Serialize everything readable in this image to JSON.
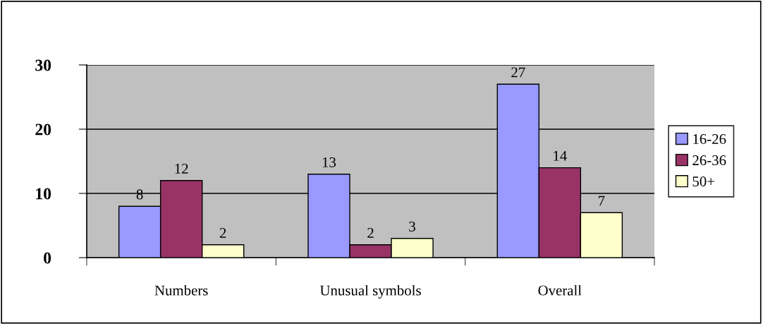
{
  "chart_data": {
    "type": "bar",
    "categories": [
      "Numbers",
      "Unusual symbols",
      "Overall"
    ],
    "series": [
      {
        "name": "16-26",
        "color": "#9999ff",
        "values": [
          8,
          13,
          27
        ]
      },
      {
        "name": "26-36",
        "color": "#993366",
        "values": [
          12,
          2,
          14
        ]
      },
      {
        "name": "50+",
        "color": "#ffffcc",
        "values": [
          2,
          3,
          7
        ]
      }
    ],
    "ylim": [
      0,
      30
    ],
    "yticks": [
      0,
      10,
      20,
      30
    ],
    "grid": "y",
    "legend": "right",
    "data_labels": true
  }
}
